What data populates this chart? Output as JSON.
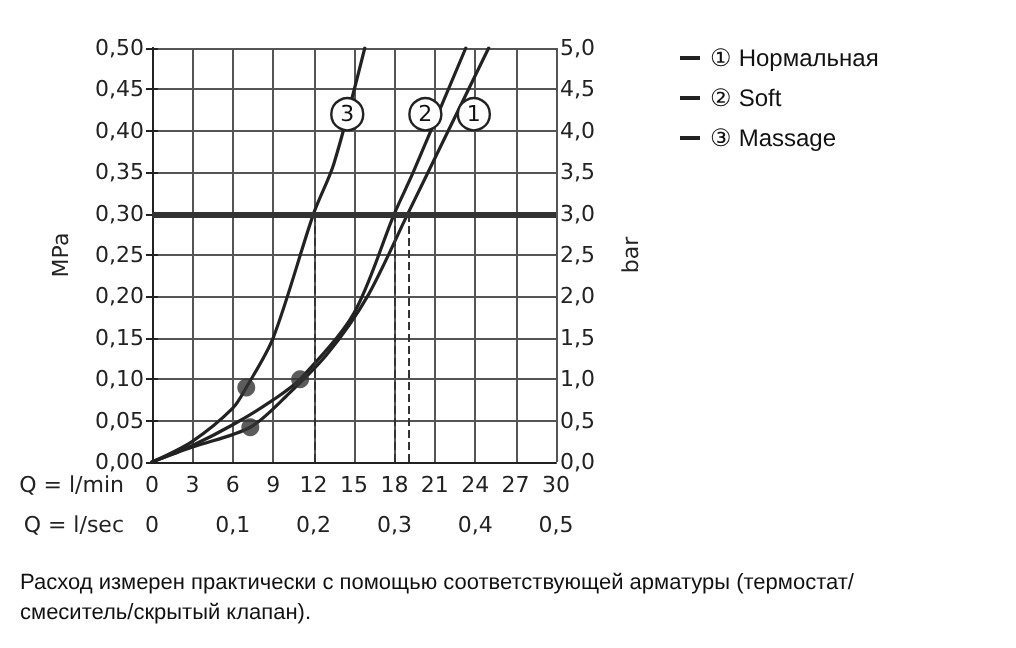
{
  "chart_data": {
    "type": "line",
    "xlabel": "Q = l/min",
    "ylabel": "MPa",
    "y2label": "bar",
    "x2label": "Q = l/sec",
    "xlim": [
      0,
      30
    ],
    "xticks": [
      0,
      3,
      6,
      9,
      12,
      15,
      18,
      21,
      24,
      27,
      30
    ],
    "ylim": [
      0,
      0.5
    ],
    "yticks": [
      {
        "value": 0,
        "label": "0,00"
      },
      {
        "value": 0.05,
        "label": "0,05"
      },
      {
        "value": 0.1,
        "label": "0,10"
      },
      {
        "value": 0.15,
        "label": "0,15"
      },
      {
        "value": 0.2,
        "label": "0,20"
      },
      {
        "value": 0.25,
        "label": "0,25"
      },
      {
        "value": 0.3,
        "label": "0,30"
      },
      {
        "value": 0.35,
        "label": "0,35"
      },
      {
        "value": 0.4,
        "label": "0,40"
      },
      {
        "value": 0.45,
        "label": "0,45"
      },
      {
        "value": 0.5,
        "label": "0,50"
      }
    ],
    "y2lim": [
      0,
      5
    ],
    "y2ticks": [
      {
        "value": 0,
        "label": "0,0"
      },
      {
        "value": 0.5,
        "label": "0,5"
      },
      {
        "value": 1,
        "label": "1,0"
      },
      {
        "value": 1.5,
        "label": "1,5"
      },
      {
        "value": 2,
        "label": "2,0"
      },
      {
        "value": 2.5,
        "label": "2,5"
      },
      {
        "value": 3,
        "label": "3,0"
      },
      {
        "value": 3.5,
        "label": "3,5"
      },
      {
        "value": 4,
        "label": "4,0"
      },
      {
        "value": 4.5,
        "label": "4,5"
      },
      {
        "value": 5,
        "label": "5,0"
      }
    ],
    "x2lim": [
      0,
      0.5
    ],
    "x2ticks": [
      0,
      {
        "value": 0.1,
        "label": "0,1"
      },
      {
        "value": 0.2,
        "label": "0,2"
      },
      {
        "value": 0.3,
        "label": "0,3"
      },
      {
        "value": 0.4,
        "label": "0,4"
      },
      {
        "value": 0.5,
        "label": "0,5"
      }
    ],
    "grid": true,
    "legend": "top right",
    "marker": "none",
    "series": [
      {
        "name": "① Нормальная",
        "color": "#222222",
        "x": [
          0,
          3,
          7.3,
          10,
          13,
          16,
          19,
          22,
          25
        ],
        "values": [
          0,
          0.018,
          0.042,
          0.08,
          0.13,
          0.2,
          0.3,
          0.4,
          0.5
        ]
      },
      {
        "name": "② Soft",
        "color": "#222222",
        "x": [
          0,
          3,
          6,
          9,
          11,
          15,
          18,
          19.4,
          23.3
        ],
        "values": [
          0,
          0.02,
          0.045,
          0.075,
          0.1,
          0.18,
          0.3,
          0.35,
          0.5
        ]
      },
      {
        "name": "③ Massage",
        "color": "#222222",
        "x": [
          0,
          3,
          6,
          7,
          9,
          12,
          13.5,
          15.8
        ],
        "values": [
          0,
          0.025,
          0.065,
          0.09,
          0.15,
          0.3,
          0.36,
          0.5
        ]
      },
      {
        "type": "scatter",
        "marker": "circle",
        "color": "#333333",
        "x": [
          7,
          11,
          7.3
        ],
        "values": [
          0.09,
          0.1,
          0.042
        ]
      }
    ],
    "ref_lines": [
      {
        "axis": "y",
        "value": 0.3,
        "color": "#333333",
        "line_style": "solid"
      },
      {
        "axis": "x",
        "value": 12,
        "color": "#333333",
        "line_style": "dashed"
      },
      {
        "axis": "x",
        "value": 18,
        "color": "#333333",
        "line_style": "dashed"
      },
      {
        "axis": "x",
        "value": 19,
        "color": "#333333",
        "line_style": "dashed"
      }
    ],
    "annotations": [
      {
        "text": "3",
        "x": 14.5,
        "y": 0.42
      },
      {
        "text": "2",
        "x": 20.3,
        "y": 0.42
      },
      {
        "text": "1",
        "x": 23.9,
        "y": 0.42
      },
      "Расход измерен практически с помощью соответствующей арматуры (термостат/\nсмеситель/скрытый клапан)."
    ]
  }
}
